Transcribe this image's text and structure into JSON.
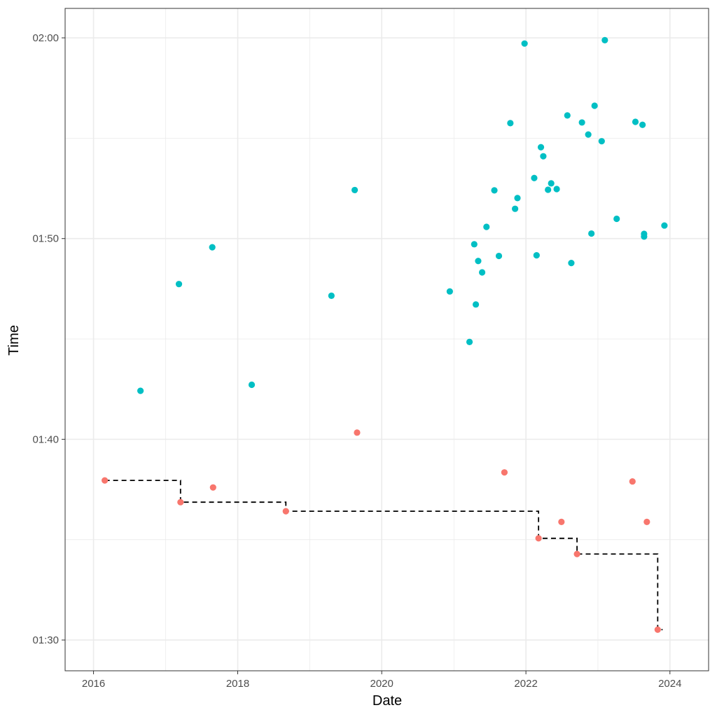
{
  "chart_data": {
    "type": "scatter",
    "xlabel": "Date",
    "ylabel": "Time",
    "x_ticks": [
      "2016",
      "2018",
      "2020",
      "2022",
      "2024"
    ],
    "y_ticks": [
      "01:30",
      "01:40",
      "01:50",
      "02:00"
    ],
    "xlim": [
      "2015-08-10",
      "2024-07-15"
    ],
    "ylim": [
      "01:28:28",
      "02:01:28"
    ],
    "grid": true,
    "legend": "none",
    "colors": {
      "series_a": "#F8766D",
      "series_b": "#00BFC4",
      "step_line": "#000000"
    },
    "series": [
      {
        "color": "#00BFC4",
        "points": [
          {
            "x": "2016-08-26",
            "y": "01:42:25"
          },
          {
            "x": "2017-03-09",
            "y": "01:47:44"
          },
          {
            "x": "2017-08-25",
            "y": "01:49:34"
          },
          {
            "x": "2018-03-13",
            "y": "01:42:43"
          },
          {
            "x": "2019-04-21",
            "y": "01:47:09"
          },
          {
            "x": "2019-08-17",
            "y": "01:52:25"
          },
          {
            "x": "2020-12-11",
            "y": "01:47:22"
          },
          {
            "x": "2021-03-21",
            "y": "01:44:51"
          },
          {
            "x": "2021-04-14",
            "y": "01:49:43"
          },
          {
            "x": "2021-04-22",
            "y": "01:46:43"
          },
          {
            "x": "2021-05-04",
            "y": "01:48:53"
          },
          {
            "x": "2021-05-24",
            "y": "01:48:19"
          },
          {
            "x": "2021-06-15",
            "y": "01:50:35"
          },
          {
            "x": "2021-07-25",
            "y": "01:52:24"
          },
          {
            "x": "2021-08-17",
            "y": "01:49:08"
          },
          {
            "x": "2021-10-14",
            "y": "01:55:45"
          },
          {
            "x": "2021-11-07",
            "y": "01:51:29"
          },
          {
            "x": "2021-11-19",
            "y": "01:52:01"
          },
          {
            "x": "2021-12-25",
            "y": "01:59:43"
          },
          {
            "x": "2022-02-12",
            "y": "01:53:01"
          },
          {
            "x": "2022-02-24",
            "y": "01:49:10"
          },
          {
            "x": "2022-03-18",
            "y": "01:54:33"
          },
          {
            "x": "2022-03-30",
            "y": "01:54:06"
          },
          {
            "x": "2022-04-23",
            "y": "01:52:26"
          },
          {
            "x": "2022-05-09",
            "y": "01:52:45"
          },
          {
            "x": "2022-06-06",
            "y": "01:52:28"
          },
          {
            "x": "2022-07-30",
            "y": "01:56:08"
          },
          {
            "x": "2022-08-19",
            "y": "01:48:47"
          },
          {
            "x": "2022-10-12",
            "y": "01:55:47"
          },
          {
            "x": "2022-11-13",
            "y": "01:55:11"
          },
          {
            "x": "2022-11-29",
            "y": "01:50:15"
          },
          {
            "x": "2022-12-15",
            "y": "01:56:37"
          },
          {
            "x": "2023-01-20",
            "y": "01:54:51"
          },
          {
            "x": "2023-02-05",
            "y": "01:59:53"
          },
          {
            "x": "2023-04-06",
            "y": "01:50:59"
          },
          {
            "x": "2023-07-10",
            "y": "01:55:49"
          },
          {
            "x": "2023-08-15",
            "y": "01:55:40"
          },
          {
            "x": "2023-08-23",
            "y": "01:50:06"
          },
          {
            "x": "2023-08-23",
            "y": "01:50:14"
          },
          {
            "x": "2023-12-04",
            "y": "01:50:39"
          }
        ]
      },
      {
        "color": "#F8766D",
        "points": [
          {
            "x": "2016-02-27",
            "y": "01:37:57"
          },
          {
            "x": "2017-03-17",
            "y": "01:36:52"
          },
          {
            "x": "2017-08-29",
            "y": "01:37:36"
          },
          {
            "x": "2018-09-02",
            "y": "01:36:25"
          },
          {
            "x": "2019-08-29",
            "y": "01:40:20"
          },
          {
            "x": "2021-09-14",
            "y": "01:38:21"
          },
          {
            "x": "2022-03-06",
            "y": "01:35:04"
          },
          {
            "x": "2022-06-30",
            "y": "01:35:53"
          },
          {
            "x": "2022-09-17",
            "y": "01:34:17"
          },
          {
            "x": "2023-06-25",
            "y": "01:37:54"
          },
          {
            "x": "2023-09-06",
            "y": "01:35:53"
          },
          {
            "x": "2023-10-31",
            "y": "01:30:31"
          }
        ]
      }
    ],
    "step_line": {
      "style": "dashed",
      "points": [
        {
          "x": "2016-02-27",
          "y": "01:37:57"
        },
        {
          "x": "2017-03-17",
          "y": "01:36:52"
        },
        {
          "x": "2018-09-02",
          "y": "01:36:25"
        },
        {
          "x": "2022-03-06",
          "y": "01:35:04"
        },
        {
          "x": "2022-09-17",
          "y": "01:34:17"
        },
        {
          "x": "2023-10-31",
          "y": "01:30:31"
        },
        {
          "x": "2023-11-25",
          "y": "01:30:31"
        }
      ]
    }
  }
}
